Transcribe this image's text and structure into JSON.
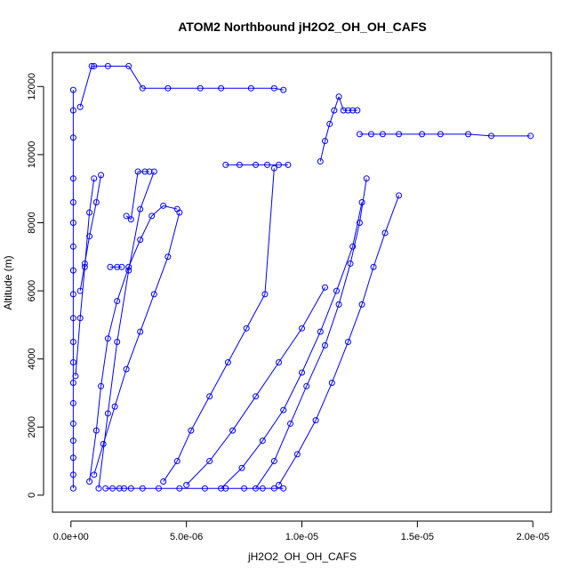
{
  "chart_data": {
    "type": "scatter",
    "title": "ATOM2 Northbound jH2O2_OH_OH_CAFS",
    "xlabel": "jH2O2_OH_OH_CAFS",
    "ylabel": "Altitude (m)",
    "xlim": [
      -8e-07,
      2.08e-05
    ],
    "ylim": [
      -500,
      13000
    ],
    "x_ticks": [
      0,
      5e-06,
      1e-05,
      1.5e-05,
      2e-05
    ],
    "x_tick_labels": [
      "0.0e+00",
      "5.0e-06",
      "1.0e-05",
      "1.5e-05",
      "2.0e-05"
    ],
    "y_ticks": [
      0,
      2000,
      4000,
      6000,
      8000,
      10000,
      12000
    ],
    "y_tick_labels": [
      "0",
      "2000",
      "4000",
      "6000",
      "8000",
      "10000",
      "12000"
    ],
    "grid": false,
    "legend": "none",
    "colors": {
      "series": "#0000ff",
      "axis": "#000000"
    },
    "series": [
      {
        "x": [
          1e-07,
          1e-07,
          1e-07,
          1e-07,
          1e-07,
          1e-07,
          1e-07,
          1e-07,
          1e-07,
          1e-07,
          1e-07,
          1e-07,
          1e-07,
          1e-07,
          1e-07,
          1e-07,
          1e-07,
          1e-07,
          1e-07
        ],
        "y": [
          200,
          600,
          1100,
          1600,
          2100,
          2700,
          3300,
          3900,
          4500,
          5200,
          5900,
          6600,
          7300,
          8000,
          8600,
          9300,
          10500,
          11300,
          11900
        ]
      },
      {
        "x": [
          1.5e-06,
          1.8e-06,
          2.1e-06,
          2.3e-06,
          2.6e-06,
          3.1e-06,
          3.8e-06,
          4.7e-06,
          5.8e-06,
          6.7e-06,
          7.5e-06,
          8.3e-06,
          8.8e-06,
          9.2e-06
        ],
        "y": [
          200,
          200,
          200,
          200,
          200,
          200,
          200,
          200,
          200,
          200,
          200,
          200,
          200,
          200
        ]
      },
      {
        "x": [
          4e-07,
          9e-07,
          1e-06,
          1.6e-06,
          2.5e-06,
          3.1e-06,
          4.2e-06,
          5.6e-06,
          6.5e-06,
          7.8e-06,
          8.8e-06,
          9.2e-06
        ],
        "y": [
          11400,
          12600,
          12600,
          12600,
          12600,
          11950,
          11950,
          11950,
          11950,
          11950,
          11950,
          11900
        ]
      },
      {
        "x": [
          8e-07,
          1.1e-06,
          1.3e-06,
          1.6e-06,
          2e-06,
          2.5e-06,
          3e-06,
          3.5e-06,
          4e-06,
          4.6e-06
        ],
        "y": [
          400,
          1900,
          3200,
          4600,
          5700,
          6700,
          7500,
          8200,
          8500,
          8400
        ]
      },
      {
        "x": [
          1e-06,
          1.4e-06,
          1.9e-06,
          2.4e-06,
          3e-06,
          3.6e-06,
          4.2e-06,
          4.7e-06
        ],
        "y": [
          600,
          1500,
          2600,
          3700,
          4800,
          5900,
          7000,
          8300
        ]
      },
      {
        "x": [
          1.2e-06,
          1.6e-06,
          2e-06,
          2.5e-06,
          3e-06,
          3.6e-06
        ],
        "y": [
          200,
          2400,
          4500,
          6600,
          8400,
          9500
        ]
      },
      {
        "x": [
          4e-06,
          4.6e-06,
          5.2e-06,
          6e-06,
          6.8e-06,
          7.6e-06,
          8.4e-06,
          8.8e-06
        ],
        "y": [
          400,
          1000,
          1900,
          2900,
          3900,
          4900,
          5900,
          9600
        ]
      },
      {
        "x": [
          5e-06,
          6e-06,
          7e-06,
          8e-06,
          9e-06,
          1e-05,
          1.1e-05
        ],
        "y": [
          300,
          1000,
          1900,
          2900,
          3900,
          4900,
          6100
        ]
      },
      {
        "x": [
          6.5e-06,
          7.4e-06,
          8.3e-06,
          9.2e-06,
          1e-05,
          1.08e-05,
          1.15e-05,
          1.22e-05,
          1.26e-05
        ],
        "y": [
          200,
          800,
          1600,
          2500,
          3600,
          4800,
          6000,
          7300,
          8600
        ]
      },
      {
        "x": [
          8e-06,
          8.8e-06,
          9.5e-06,
          1.02e-05,
          1.1e-05,
          1.16e-05,
          1.21e-05,
          1.25e-05,
          1.28e-05
        ],
        "y": [
          200,
          1000,
          2100,
          3200,
          4400,
          5600,
          6800,
          8000,
          9300
        ]
      },
      {
        "x": [
          9e-06,
          9.8e-06,
          1.06e-05,
          1.13e-05,
          1.2e-05,
          1.26e-05,
          1.31e-05,
          1.36e-05,
          1.42e-05
        ],
        "y": [
          300,
          1200,
          2200,
          3300,
          4500,
          5600,
          6700,
          7700,
          8800
        ]
      },
      {
        "x": [
          1.08e-05,
          1.1e-05,
          1.12e-05,
          1.14e-05,
          1.16e-05,
          1.18e-05,
          1.2e-05,
          1.22e-05,
          1.24e-05
        ],
        "y": [
          9800,
          10400,
          10900,
          11300,
          11700,
          11300,
          11300,
          11300,
          11300
        ]
      },
      {
        "x": [
          1.25e-05,
          1.3e-05,
          1.35e-05,
          1.42e-05,
          1.52e-05,
          1.6e-05,
          1.72e-05,
          1.82e-05,
          1.99e-05
        ],
        "y": [
          10600,
          10600,
          10600,
          10600,
          10600,
          10600,
          10600,
          10550,
          10550
        ]
      },
      {
        "x": [
          2.4e-06,
          2.6e-06,
          2.9e-06,
          3.2e-06,
          3.4e-06
        ],
        "y": [
          8200,
          8100,
          9500,
          9500,
          9500
        ]
      },
      {
        "x": [
          6.7e-06,
          7.3e-06,
          8e-06,
          8.5e-06,
          9e-06,
          9.4e-06
        ],
        "y": [
          9700,
          9700,
          9700,
          9700,
          9700,
          9700
        ]
      },
      {
        "x": [
          4e-07,
          6e-07,
          8e-07,
          1.1e-06,
          1.3e-06
        ],
        "y": [
          6000,
          6800,
          7600,
          8600,
          9400
        ]
      },
      {
        "x": [
          2e-07,
          4e-07,
          6e-07,
          8e-07,
          1e-06
        ],
        "y": [
          3500,
          5200,
          6700,
          8300,
          9300
        ]
      },
      {
        "x": [
          1.7e-06,
          2e-06,
          2.2e-06
        ],
        "y": [
          6700,
          6700,
          6700
        ]
      }
    ]
  }
}
